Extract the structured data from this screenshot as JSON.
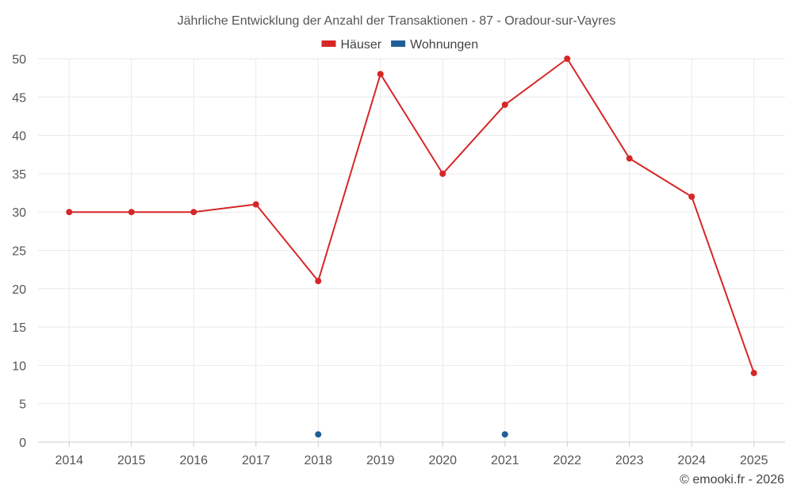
{
  "chart_data": {
    "type": "line",
    "title": "Jährliche Entwicklung der Anzahl der Transaktionen - 87 - Oradour-sur-Vayres",
    "xlabel": "",
    "ylabel": "",
    "categories": [
      "2014",
      "2015",
      "2016",
      "2017",
      "2018",
      "2019",
      "2020",
      "2021",
      "2022",
      "2023",
      "2024",
      "2025"
    ],
    "ylim": [
      0,
      50
    ],
    "yticks": [
      0,
      5,
      10,
      15,
      20,
      25,
      30,
      35,
      40,
      45,
      50
    ],
    "grid": true,
    "legend_position": "top-center",
    "series": [
      {
        "name": "Häuser",
        "color": "#d62728",
        "line": true,
        "values": [
          30,
          30,
          30,
          31,
          21,
          48,
          35,
          44,
          50,
          37,
          32,
          9
        ]
      },
      {
        "name": "Wohnungen",
        "color": "#1f5f99",
        "line": false,
        "values": [
          null,
          null,
          null,
          null,
          1,
          null,
          null,
          1,
          null,
          null,
          null,
          null
        ]
      }
    ]
  },
  "footer": {
    "credit": "© emooki.fr - 2026"
  }
}
